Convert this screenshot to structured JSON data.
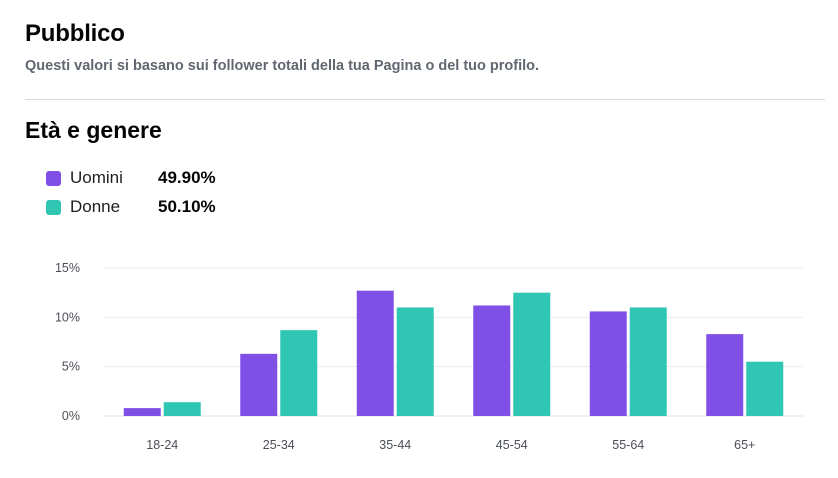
{
  "header": {
    "title": "Pubblico",
    "subtitle": "Questi valori si basano sui follower totali della tua Pagina o del tuo profilo."
  },
  "section": {
    "title": "Età e genere"
  },
  "legend": {
    "items": [
      {
        "label": "Uomini",
        "value": "49.90%",
        "color": "#8050e6"
      },
      {
        "label": "Donne",
        "value": "50.10%",
        "color": "#30c6b4"
      }
    ]
  },
  "chart_data": {
    "type": "bar",
    "categories": [
      "18-24",
      "25-34",
      "35-44",
      "45-54",
      "55-64",
      "65+"
    ],
    "series": [
      {
        "name": "Uomini",
        "color": "#8050e6",
        "values": [
          0.8,
          6.3,
          12.7,
          11.2,
          10.6,
          8.3
        ]
      },
      {
        "name": "Donne",
        "color": "#30c6b4",
        "values": [
          1.4,
          8.7,
          11.0,
          12.5,
          11.0,
          5.5
        ]
      }
    ],
    "yticks": [
      "0%",
      "5%",
      "10%",
      "15%"
    ],
    "ylim": [
      0,
      15
    ],
    "grid": true
  }
}
